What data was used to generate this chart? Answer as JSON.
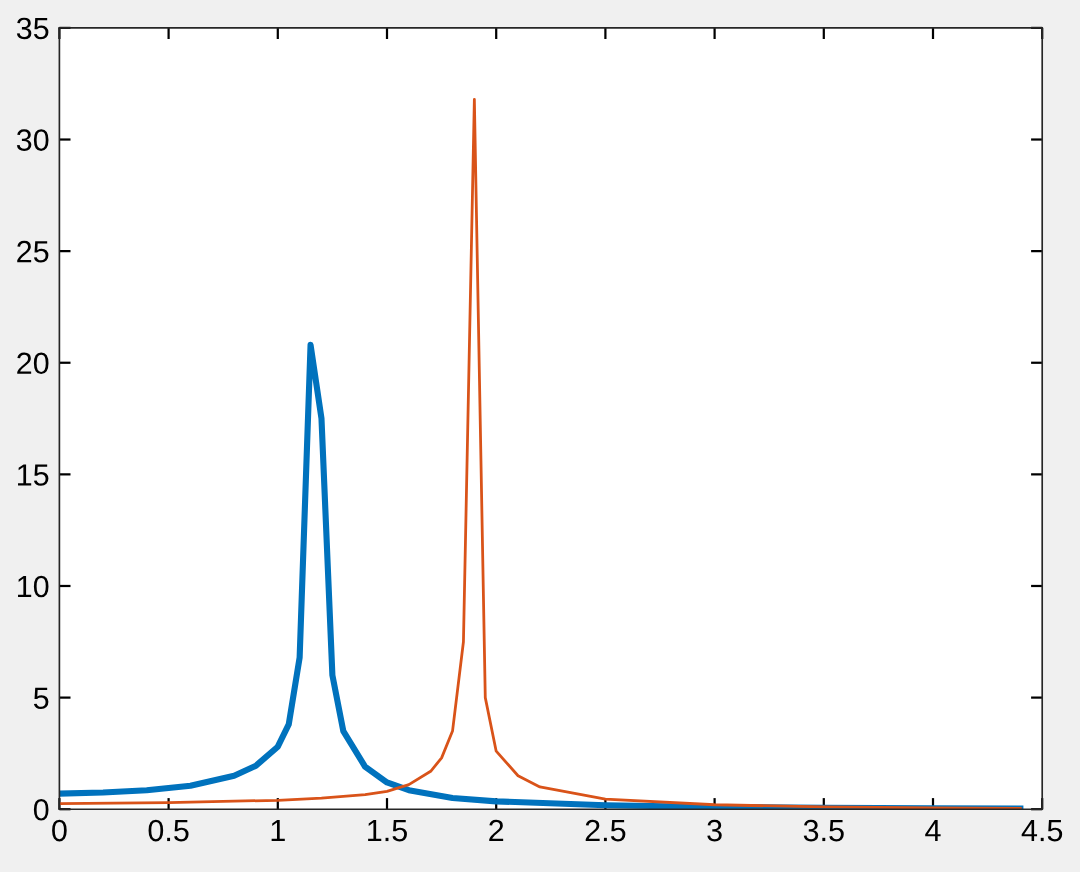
{
  "chart_data": {
    "type": "line",
    "series": [
      {
        "color": "#0072bd",
        "x": [
          0,
          0.2,
          0.4,
          0.6,
          0.8,
          0.9,
          1.0,
          1.05,
          1.1,
          1.15,
          1.2,
          1.25,
          1.3,
          1.4,
          1.5,
          1.6,
          1.8,
          2.0,
          2.5,
          3.0,
          3.5,
          4.0,
          4.4
        ],
        "values": [
          0.7,
          0.75,
          0.85,
          1.05,
          1.5,
          1.95,
          2.8,
          3.8,
          6.8,
          20.8,
          17.5,
          6.0,
          3.5,
          1.9,
          1.2,
          0.85,
          0.5,
          0.35,
          0.18,
          0.1,
          0.06,
          0.04,
          0.03
        ]
      },
      {
        "color": "#d95319",
        "x": [
          0,
          0.5,
          1.0,
          1.2,
          1.4,
          1.5,
          1.6,
          1.7,
          1.75,
          1.8,
          1.85,
          1.9,
          1.95,
          2.0,
          2.1,
          2.2,
          2.5,
          3.0,
          3.5,
          4.0,
          4.4
        ],
        "values": [
          0.25,
          0.3,
          0.4,
          0.5,
          0.65,
          0.8,
          1.1,
          1.7,
          2.3,
          3.5,
          7.5,
          31.8,
          5.0,
          2.6,
          1.5,
          1.0,
          0.45,
          0.2,
          0.1,
          0.06,
          0.04
        ]
      }
    ],
    "xlim": [
      0,
      4.5
    ],
    "ylim": [
      0,
      35
    ],
    "xticks": [
      0,
      0.5,
      1,
      1.5,
      2,
      2.5,
      3,
      3.5,
      4,
      4.5
    ],
    "yticks": [
      0,
      5,
      10,
      15,
      20,
      25,
      30,
      35
    ],
    "grid": false,
    "legend": false
  }
}
